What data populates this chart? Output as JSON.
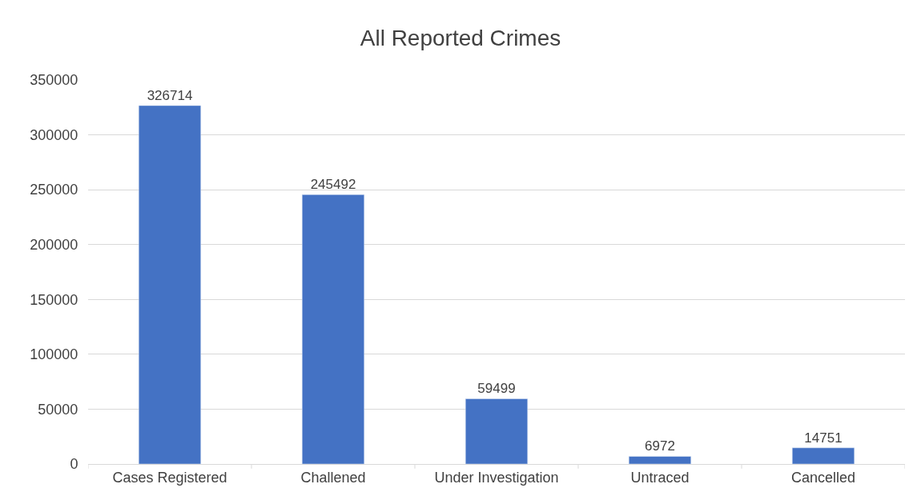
{
  "chart_data": {
    "type": "bar",
    "title": "All Reported Crimes",
    "categories": [
      "Cases Registered",
      "Challened",
      "Under Investigation",
      "Untraced",
      "Cancelled"
    ],
    "values": [
      326714,
      245492,
      59499,
      6972,
      14751
    ],
    "color": "#4472c4",
    "ylim": [
      0,
      350000
    ],
    "yticks": [
      0,
      50000,
      100000,
      150000,
      200000,
      250000,
      300000,
      350000
    ],
    "grid": "y",
    "data_labels": true,
    "legend": false
  }
}
